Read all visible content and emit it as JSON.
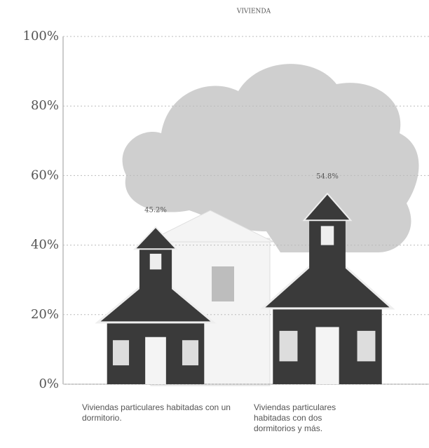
{
  "chart_data": {
    "type": "pictograph",
    "title": "VIVIENDA",
    "categories": [
      "Viviendas particulares habitadas con un dormitorio.",
      "Viviendas particulares habitadas con dos dormitorios y más."
    ],
    "values": [
      45.2,
      54.8
    ],
    "value_labels": [
      "45.2%",
      "54.8%"
    ],
    "color": "#3a3a3a",
    "ylim": [
      0,
      100
    ],
    "yticks": [
      {
        "value": 0,
        "label": "0%"
      },
      {
        "value": 20,
        "label": "20%"
      },
      {
        "value": 40,
        "label": "40%"
      },
      {
        "value": 60,
        "label": "60%"
      },
      {
        "value": 80,
        "label": "80%"
      },
      {
        "value": 100,
        "label": "100%"
      }
    ],
    "grid": true
  }
}
